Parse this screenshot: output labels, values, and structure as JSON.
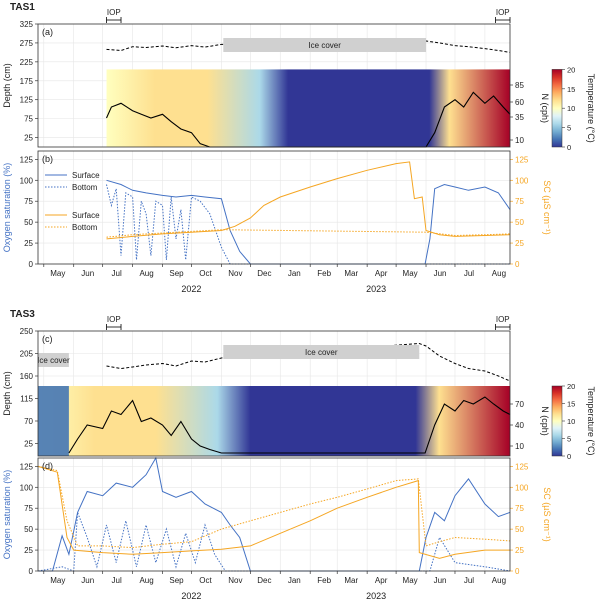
{
  "figure": {
    "colors": {
      "oxygen": "#4472c4",
      "sc": "#f5a623",
      "depth_line": "#000000",
      "ice_fill": "#d0d0d0",
      "grid": "#e6e6e6"
    },
    "colorbar": {
      "label": "Temperature (°C)",
      "ticks": [
        "0",
        "5",
        "10",
        "15",
        "20"
      ],
      "colors": [
        "#313695",
        "#4575b4",
        "#74add1",
        "#abd9e9",
        "#e0f3f8",
        "#ffffbf",
        "#fee090",
        "#fdae61",
        "#f46d43",
        "#d73027",
        "#a50026"
      ]
    },
    "x_axis": {
      "months": [
        "May",
        "Jun",
        "Jul",
        "Aug",
        "Sep",
        "Oct",
        "Nov",
        "Dec",
        "Jan",
        "Feb",
        "Mar",
        "Apr",
        "May",
        "Jun",
        "Jul",
        "Aug"
      ],
      "years": [
        "2022",
        "2023"
      ]
    }
  },
  "chart_data": [
    {
      "panel": "a",
      "station": "TAS1",
      "type": "line",
      "label": "(a)",
      "ylabel": "Depth (cm)",
      "yticks": [
        "25",
        "75",
        "125",
        "175",
        "225",
        "275",
        "325"
      ],
      "ylim": [
        0,
        325
      ],
      "iop_label": "IOP",
      "ice_label": "Ice cover",
      "ice_period": [
        "2022-11-03",
        "2023-06-01"
      ],
      "iop_periods": [
        [
          "2022-07-05",
          "2022-07-20"
        ],
        [
          "2023-08-12",
          "2023-08-27"
        ]
      ],
      "snow_ice_depth": {
        "x": [
          "2022-07-05",
          "2022-07-20",
          "2022-08-01",
          "2022-08-15",
          "2022-09-01",
          "2022-09-15",
          "2022-10-01",
          "2022-10-15",
          "2022-11-01",
          "2023-06-01",
          "2023-06-15",
          "2023-07-01",
          "2023-07-15",
          "2023-08-01",
          "2023-08-15",
          "2023-08-27"
        ],
        "y": [
          258,
          255,
          265,
          263,
          267,
          262,
          268,
          264,
          271,
          280,
          275,
          268,
          265,
          260,
          255,
          250
        ]
      },
      "heatmap_top": 205,
      "right_axis": {
        "label": "N (cph)",
        "ticks": [
          "10",
          "35",
          "60",
          "85"
        ]
      },
      "N": {
        "x": [
          "2022-07-05",
          "2022-07-10",
          "2022-07-20",
          "2022-08-01",
          "2022-08-10",
          "2022-08-20",
          "2022-09-01",
          "2022-09-10",
          "2022-09-20",
          "2022-10-01",
          "2022-10-10",
          "2022-10-20",
          "2022-11-01",
          "2023-06-01",
          "2023-06-10",
          "2023-06-20",
          "2023-07-01",
          "2023-07-10",
          "2023-07-20",
          "2023-08-01",
          "2023-08-10",
          "2023-08-20",
          "2023-08-27"
        ],
        "y": [
          40,
          55,
          60,
          50,
          45,
          40,
          45,
          35,
          25,
          20,
          5,
          0,
          0,
          0,
          20,
          55,
          65,
          55,
          75,
          60,
          70,
          55,
          45
        ]
      }
    },
    {
      "panel": "b",
      "station": "TAS1",
      "type": "line",
      "label": "(b)",
      "ylabel": "Oxygen saturation (%)",
      "y2label": "SC (µS cm⁻¹)",
      "yticks": [
        "0",
        "25",
        "50",
        "75",
        "100",
        "125"
      ],
      "ylim": [
        0,
        135
      ],
      "legend": {
        "oxygen": [
          "Surface",
          "Bottom"
        ],
        "sc": [
          "Surface",
          "Bottom"
        ]
      },
      "series": [
        {
          "name": "Surface",
          "kind": "oxygen",
          "style": "solid",
          "x": [
            "2022-07-05",
            "2022-07-20",
            "2022-08-01",
            "2022-08-15",
            "2022-09-01",
            "2022-09-15",
            "2022-10-01",
            "2022-10-15",
            "2022-11-01",
            "2022-11-10",
            "2022-11-20",
            "2022-12-01",
            "2023-05-31",
            "2023-06-05",
            "2023-06-10",
            "2023-06-20",
            "2023-07-01",
            "2023-07-15",
            "2023-08-01",
            "2023-08-15",
            "2023-08-27"
          ],
          "y": [
            100,
            95,
            88,
            85,
            82,
            80,
            82,
            80,
            78,
            40,
            15,
            0,
            0,
            30,
            90,
            95,
            92,
            88,
            92,
            85,
            65
          ]
        },
        {
          "name": "Bottom",
          "kind": "oxygen",
          "style": "dotted",
          "x": [
            "2022-07-05",
            "2022-07-10",
            "2022-07-15",
            "2022-07-20",
            "2022-07-25",
            "2022-08-01",
            "2022-08-05",
            "2022-08-10",
            "2022-08-15",
            "2022-08-20",
            "2022-08-25",
            "2022-09-01",
            "2022-09-05",
            "2022-09-10",
            "2022-09-15",
            "2022-09-20",
            "2022-09-25",
            "2022-10-01",
            "2022-10-10",
            "2022-10-20",
            "2022-11-01",
            "2022-11-10",
            "2023-06-01",
            "2023-06-15",
            "2023-07-01",
            "2023-08-01",
            "2023-08-27"
          ],
          "y": [
            95,
            70,
            90,
            10,
            85,
            80,
            5,
            75,
            60,
            10,
            75,
            70,
            5,
            80,
            30,
            65,
            5,
            80,
            75,
            60,
            20,
            0,
            0,
            0,
            0,
            0,
            0
          ]
        },
        {
          "name": "Surface",
          "kind": "sc",
          "style": "solid",
          "x": [
            "2022-07-05",
            "2022-08-01",
            "2022-09-01",
            "2022-10-01",
            "2022-11-01",
            "2022-11-15",
            "2022-12-01",
            "2022-12-15",
            "2023-01-01",
            "2023-02-01",
            "2023-03-01",
            "2023-04-01",
            "2023-05-01",
            "2023-05-15",
            "2023-05-20",
            "2023-05-28",
            "2023-06-01",
            "2023-06-15",
            "2023-07-01",
            "2023-08-01",
            "2023-08-27"
          ],
          "y": [
            30,
            33,
            36,
            38,
            40,
            45,
            55,
            70,
            80,
            92,
            102,
            112,
            120,
            122,
            78,
            80,
            40,
            35,
            33,
            34,
            35
          ]
        },
        {
          "name": "Bottom",
          "kind": "sc",
          "style": "dotted",
          "x": [
            "2022-07-05",
            "2022-08-01",
            "2022-09-01",
            "2022-10-01",
            "2022-11-01",
            "2023-06-01",
            "2023-07-01",
            "2023-08-01",
            "2023-08-27"
          ],
          "y": [
            32,
            35,
            37,
            39,
            41,
            38,
            34,
            35,
            36
          ]
        }
      ]
    },
    {
      "panel": "c",
      "station": "TAS3",
      "type": "line",
      "label": "(c)",
      "ylabel": "Depth (cm)",
      "yticks": [
        "25",
        "70",
        "115",
        "160",
        "205",
        "250"
      ],
      "ylim": [
        0,
        250
      ],
      "iop_label": "IOP",
      "ice_label": "Ice cover",
      "ice_period": [
        "2022-11-03",
        "2023-05-25"
      ],
      "ice_period_early": [
        "2022-04-25",
        "2022-05-27"
      ],
      "iop_periods": [
        [
          "2022-07-05",
          "2022-07-20"
        ],
        [
          "2023-08-12",
          "2023-08-27"
        ]
      ],
      "snow_ice_depth": {
        "x": [
          "2022-07-05",
          "2022-07-20",
          "2022-08-01",
          "2022-08-15",
          "2022-09-01",
          "2022-09-15",
          "2022-10-01",
          "2022-10-15",
          "2022-11-01",
          "2023-05-25",
          "2023-06-01",
          "2023-06-15",
          "2023-07-01",
          "2023-07-15",
          "2023-08-01",
          "2023-08-15",
          "2023-08-27"
        ],
        "y": [
          180,
          175,
          178,
          182,
          185,
          180,
          190,
          188,
          196,
          225,
          220,
          200,
          185,
          175,
          170,
          160,
          150
        ]
      },
      "heatmap_top": 140,
      "right_axis": {
        "label": "N (cph)",
        "ticks": [
          "10",
          "40",
          "70"
        ]
      },
      "N": {
        "x": [
          "2022-05-27",
          "2022-06-05",
          "2022-06-15",
          "2022-07-01",
          "2022-07-10",
          "2022-07-20",
          "2022-08-01",
          "2022-08-10",
          "2022-08-20",
          "2022-09-01",
          "2022-09-10",
          "2022-09-20",
          "2022-10-01",
          "2022-10-10",
          "2022-10-20",
          "2022-11-01",
          "2023-05-31",
          "2023-06-10",
          "2023-06-20",
          "2023-07-01",
          "2023-07-10",
          "2023-07-20",
          "2023-08-01",
          "2023-08-10",
          "2023-08-20",
          "2023-08-27"
        ],
        "y": [
          0,
          20,
          40,
          35,
          60,
          55,
          75,
          45,
          50,
          40,
          25,
          45,
          20,
          10,
          5,
          0,
          0,
          40,
          70,
          60,
          75,
          70,
          80,
          70,
          60,
          55
        ]
      }
    },
    {
      "panel": "d",
      "station": "TAS3",
      "type": "line",
      "label": "(d)",
      "ylabel": "Oxygen saturation (%)",
      "y2label": "SC (µS cm⁻¹)",
      "yticks": [
        "0",
        "25",
        "50",
        "75",
        "100",
        "125"
      ],
      "ylim": [
        0,
        135
      ],
      "series": [
        {
          "name": "Surface",
          "kind": "oxygen",
          "style": "solid",
          "x": [
            "2022-04-25",
            "2022-05-10",
            "2022-05-20",
            "2022-05-27",
            "2022-06-05",
            "2022-06-15",
            "2022-07-01",
            "2022-07-15",
            "2022-08-01",
            "2022-08-15",
            "2022-08-25",
            "2022-09-01",
            "2022-09-15",
            "2022-10-01",
            "2022-10-15",
            "2022-11-01",
            "2022-11-10",
            "2022-11-20",
            "2022-12-01",
            "2023-05-25",
            "2023-06-01",
            "2023-06-10",
            "2023-06-20",
            "2023-07-01",
            "2023-07-15",
            "2023-08-01",
            "2023-08-15",
            "2023-08-27"
          ],
          "y": [
            0,
            0,
            42,
            20,
            70,
            95,
            90,
            105,
            100,
            115,
            135,
            95,
            88,
            95,
            80,
            70,
            55,
            40,
            0,
            0,
            40,
            70,
            60,
            90,
            110,
            80,
            65,
            70
          ]
        },
        {
          "name": "Bottom",
          "kind": "oxygen",
          "style": "dotted",
          "x": [
            "2022-04-25",
            "2022-05-20",
            "2022-06-01",
            "2022-06-05",
            "2022-06-15",
            "2022-06-25",
            "2022-07-05",
            "2022-07-15",
            "2022-07-25",
            "2022-08-05",
            "2022-08-15",
            "2022-08-25",
            "2022-09-05",
            "2022-09-15",
            "2022-09-25",
            "2022-10-05",
            "2022-10-15",
            "2022-10-25",
            "2022-11-05",
            "2023-05-25",
            "2023-06-05",
            "2023-06-15",
            "2023-07-01",
            "2023-08-01",
            "2023-08-27"
          ],
          "y": [
            0,
            5,
            0,
            70,
            40,
            5,
            55,
            10,
            60,
            5,
            55,
            10,
            50,
            5,
            45,
            10,
            55,
            20,
            0,
            0,
            0,
            40,
            10,
            5,
            0
          ]
        },
        {
          "name": "Surface",
          "kind": "sc",
          "style": "solid",
          "x": [
            "2022-04-25",
            "2022-05-15",
            "2022-05-25",
            "2022-06-01",
            "2022-07-01",
            "2022-08-01",
            "2022-09-01",
            "2022-10-01",
            "2022-11-01",
            "2022-12-01",
            "2023-01-01",
            "2023-02-01",
            "2023-03-01",
            "2023-04-01",
            "2023-05-01",
            "2023-05-24",
            "2023-05-25",
            "2023-06-15",
            "2023-07-01",
            "2023-08-01",
            "2023-08-27"
          ],
          "y": [
            125,
            118,
            40,
            25,
            22,
            20,
            22,
            24,
            26,
            30,
            45,
            60,
            75,
            88,
            100,
            108,
            22,
            15,
            20,
            25,
            25
          ]
        },
        {
          "name": "Bottom",
          "kind": "sc",
          "style": "dotted",
          "x": [
            "2022-04-25",
            "2022-05-15",
            "2022-05-25",
            "2022-06-05",
            "2022-07-01",
            "2022-08-01",
            "2022-09-01",
            "2022-10-01",
            "2022-11-01",
            "2022-12-01",
            "2023-01-01",
            "2023-02-01",
            "2023-03-01",
            "2023-04-01",
            "2023-05-01",
            "2023-05-24",
            "2023-06-01",
            "2023-06-15",
            "2023-07-01",
            "2023-08-01",
            "2023-08-27"
          ],
          "y": [
            125,
            120,
            60,
            30,
            30,
            28,
            32,
            35,
            50,
            60,
            70,
            80,
            88,
            98,
            108,
            110,
            30,
            35,
            40,
            38,
            36
          ]
        }
      ]
    }
  ]
}
